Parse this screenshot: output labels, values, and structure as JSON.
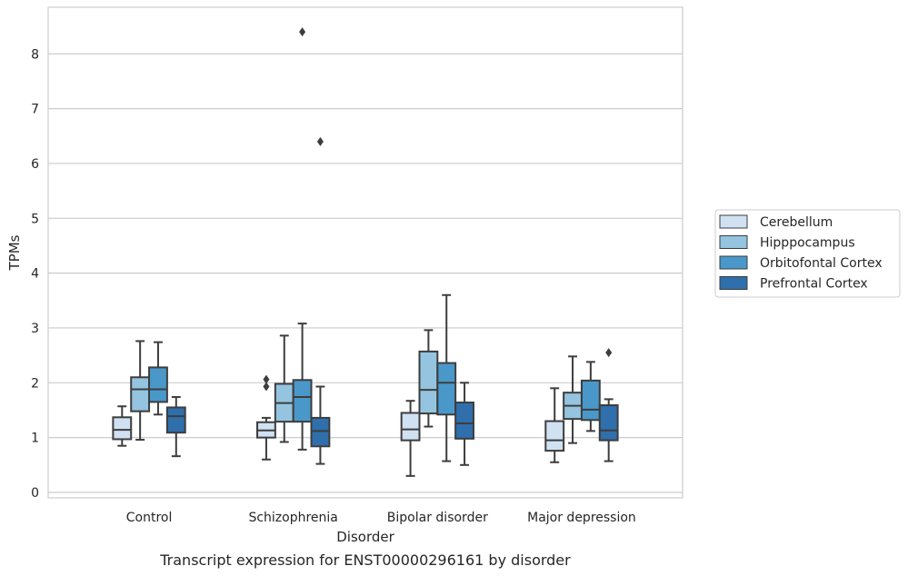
{
  "caption": "Transcript expression for ENST00000296161 by disorder",
  "chart_data": {
    "type": "box",
    "xlabel": "Disorder",
    "ylabel": "TPMs",
    "ylim": [
      -0.1,
      8.85
    ],
    "yticks": [
      0,
      1,
      2,
      3,
      4,
      5,
      6,
      7,
      8
    ],
    "grid": true,
    "legend_position": "right",
    "categories": [
      "Control",
      "Schizophrenia",
      "Bipolar disorder",
      "Major depression"
    ],
    "series": [
      {
        "name": "Cerebellum",
        "color": "#d0e1f2",
        "boxes": [
          {
            "whislo": 0.85,
            "q1": 0.97,
            "med": 1.14,
            "q3": 1.37,
            "whishi": 1.57,
            "fliers": []
          },
          {
            "whislo": 0.6,
            "q1": 1.0,
            "med": 1.13,
            "q3": 1.28,
            "whishi": 1.36,
            "fliers": [
              1.93,
              2.06
            ]
          },
          {
            "whislo": 0.3,
            "q1": 0.95,
            "med": 1.15,
            "q3": 1.45,
            "whishi": 1.67,
            "fliers": []
          },
          {
            "whislo": 0.55,
            "q1": 0.76,
            "med": 0.95,
            "q3": 1.3,
            "whishi": 1.9,
            "fliers": []
          }
        ]
      },
      {
        "name": "Hipppocampus",
        "color": "#94c4df",
        "boxes": [
          {
            "whislo": 0.96,
            "q1": 1.48,
            "med": 1.88,
            "q3": 2.1,
            "whishi": 2.76,
            "fliers": []
          },
          {
            "whislo": 0.92,
            "q1": 1.29,
            "med": 1.63,
            "q3": 1.98,
            "whishi": 2.86,
            "fliers": []
          },
          {
            "whislo": 1.2,
            "q1": 1.44,
            "med": 1.87,
            "q3": 2.57,
            "whishi": 2.96,
            "fliers": []
          },
          {
            "whislo": 0.9,
            "q1": 1.34,
            "med": 1.58,
            "q3": 1.82,
            "whishi": 2.48,
            "fliers": []
          }
        ]
      },
      {
        "name": "Orbitofontal Cortex",
        "color": "#4a98c9",
        "boxes": [
          {
            "whislo": 1.42,
            "q1": 1.65,
            "med": 1.88,
            "q3": 2.28,
            "whishi": 2.74,
            "fliers": []
          },
          {
            "whislo": 0.78,
            "q1": 1.29,
            "med": 1.74,
            "q3": 2.05,
            "whishi": 3.08,
            "fliers": [
              8.4
            ]
          },
          {
            "whislo": 0.57,
            "q1": 1.42,
            "med": 2.0,
            "q3": 2.36,
            "whishi": 3.6,
            "fliers": []
          },
          {
            "whislo": 1.12,
            "q1": 1.32,
            "med": 1.51,
            "q3": 2.04,
            "whishi": 2.38,
            "fliers": []
          }
        ]
      },
      {
        "name": "Prefrontal Cortex",
        "color": "#2e6fac",
        "boxes": [
          {
            "whislo": 0.66,
            "q1": 1.09,
            "med": 1.39,
            "q3": 1.55,
            "whishi": 1.74,
            "fliers": []
          },
          {
            "whislo": 0.52,
            "q1": 0.84,
            "med": 1.12,
            "q3": 1.36,
            "whishi": 1.93,
            "fliers": [
              6.4
            ]
          },
          {
            "whislo": 0.5,
            "q1": 0.98,
            "med": 1.26,
            "q3": 1.64,
            "whishi": 2.0,
            "fliers": []
          },
          {
            "whislo": 0.57,
            "q1": 0.95,
            "med": 1.13,
            "q3": 1.59,
            "whishi": 1.7,
            "fliers": [
              2.55
            ]
          }
        ]
      }
    ]
  }
}
